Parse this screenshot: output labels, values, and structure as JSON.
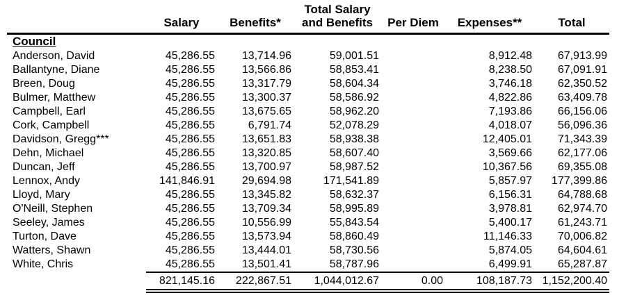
{
  "document": {
    "section_label": "Council",
    "headers": {
      "name": "",
      "salary": "Salary",
      "benefits": "Benefits*",
      "total_salary_benefits_line1": "Total Salary",
      "total_salary_benefits_line2": "and Benefits",
      "per_diem": "Per Diem",
      "expenses": "Expenses**",
      "total": "Total"
    },
    "column_keys": [
      "name",
      "salary",
      "benefits",
      "total_salary_benefits",
      "per_diem",
      "expenses",
      "total"
    ],
    "rows": [
      {
        "name": "Anderson, David",
        "salary": "45,286.55",
        "benefits": "13,714.96",
        "total_salary_benefits": "59,001.51",
        "per_diem": "",
        "expenses": "8,912.48",
        "total": "67,913.99"
      },
      {
        "name": "Ballantyne, Diane",
        "salary": "45,286.55",
        "benefits": "13,566.86",
        "total_salary_benefits": "58,853.41",
        "per_diem": "",
        "expenses": "8,238.50",
        "total": "67,091.91"
      },
      {
        "name": "Breen, Doug",
        "salary": "45,286.55",
        "benefits": "13,317.79",
        "total_salary_benefits": "58,604.34",
        "per_diem": "",
        "expenses": "3,746.18",
        "total": "62,350.52"
      },
      {
        "name": "Bulmer, Matthew",
        "salary": "45,286.55",
        "benefits": "13,300.37",
        "total_salary_benefits": "58,586.92",
        "per_diem": "",
        "expenses": "4,822.86",
        "total": "63,409.78"
      },
      {
        "name": "Campbell, Earl",
        "salary": "45,286.55",
        "benefits": "13,675.65",
        "total_salary_benefits": "58,962.20",
        "per_diem": "",
        "expenses": "7,193.86",
        "total": "66,156.06"
      },
      {
        "name": "Cork, Campbell",
        "salary": "45,286.55",
        "benefits": "6,791.74",
        "total_salary_benefits": "52,078.29",
        "per_diem": "",
        "expenses": "4,018.07",
        "total": "56,096.36"
      },
      {
        "name": "Davidson, Gregg***",
        "salary": "45,286.55",
        "benefits": "13,651.83",
        "total_salary_benefits": "58,938.38",
        "per_diem": "",
        "expenses": "12,405.01",
        "total": "71,343.39"
      },
      {
        "name": "Dehn, Michael",
        "salary": "45,286.55",
        "benefits": "13,320.85",
        "total_salary_benefits": "58,607.40",
        "per_diem": "",
        "expenses": "3,569.66",
        "total": "62,177.06"
      },
      {
        "name": "Duncan, Jeff",
        "salary": "45,286.55",
        "benefits": "13,700.97",
        "total_salary_benefits": "58,987.52",
        "per_diem": "",
        "expenses": "10,367.56",
        "total": "69,355.08"
      },
      {
        "name": "Lennox, Andy",
        "salary": "141,846.91",
        "benefits": "29,694.98",
        "total_salary_benefits": "171,541.89",
        "per_diem": "",
        "expenses": "5,857.97",
        "total": "177,399.86"
      },
      {
        "name": "Lloyd, Mary",
        "salary": "45,286.55",
        "benefits": "13,345.82",
        "total_salary_benefits": "58,632.37",
        "per_diem": "",
        "expenses": "6,156.31",
        "total": "64,788.68"
      },
      {
        "name": "O'Neill, Stephen",
        "salary": "45,286.55",
        "benefits": "13,709.34",
        "total_salary_benefits": "58,995.89",
        "per_diem": "",
        "expenses": "3,978.81",
        "total": "62,974.70"
      },
      {
        "name": "Seeley, James",
        "salary": "45,286.55",
        "benefits": "10,556.99",
        "total_salary_benefits": "55,843.54",
        "per_diem": "",
        "expenses": "5,400.17",
        "total": "61,243.71"
      },
      {
        "name": "Turton, Dave",
        "salary": "45,286.55",
        "benefits": "13,573.94",
        "total_salary_benefits": "58,860.49",
        "per_diem": "",
        "expenses": "11,146.33",
        "total": "70,006.82"
      },
      {
        "name": "Watters, Shawn",
        "salary": "45,286.55",
        "benefits": "13,444.01",
        "total_salary_benefits": "58,730.56",
        "per_diem": "",
        "expenses": "5,874.05",
        "total": "64,604.61"
      },
      {
        "name": "White, Chris",
        "salary": "45,286.55",
        "benefits": "13,501.41",
        "total_salary_benefits": "58,787.96",
        "per_diem": "",
        "expenses": "6,499.91",
        "total": "65,287.87"
      }
    ],
    "totals": {
      "name": "",
      "salary": "821,145.16",
      "benefits": "222,867.51",
      "total_salary_benefits": "1,044,012.67",
      "per_diem": "0.00",
      "expenses": "108,187.73",
      "total": "1,152,200.40"
    }
  },
  "colors": {
    "text": "#000000",
    "background": "#ffffff",
    "rule": "#000000"
  }
}
